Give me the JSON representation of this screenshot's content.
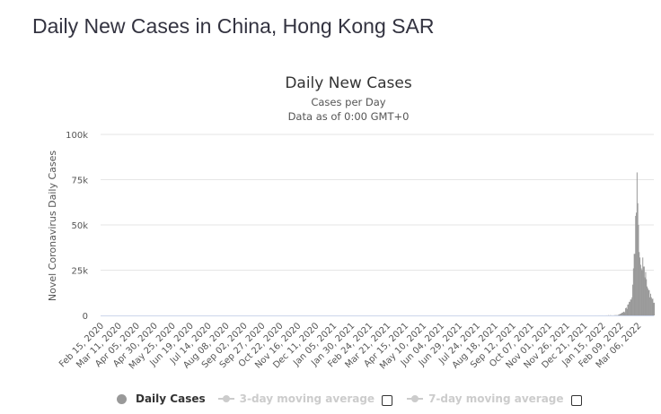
{
  "page_title": "Daily New Cases in China, Hong Kong SAR",
  "chart_data": {
    "type": "bar",
    "title": "Daily New Cases",
    "subtitle": [
      "Cases per Day",
      "Data as of 0:00 GMT+0"
    ],
    "ylabel": "Novel Coronavirus Daily Cases",
    "xlabel": "",
    "ylim": [
      0,
      100000
    ],
    "y_ticks": [
      "0",
      "25k",
      "50k",
      "75k",
      "100k"
    ],
    "y_tick_values": [
      0,
      25000,
      50000,
      75000,
      100000
    ],
    "x_start": "2020-02-15",
    "x_end": "2022-03-28",
    "x_tick_labels": [
      "Feb 15, 2020",
      "Mar 11, 2020",
      "Apr 05, 2020",
      "Apr 30, 2020",
      "May 25, 2020",
      "Jun 19, 2020",
      "Jul 14, 2020",
      "Aug 08, 2020",
      "Sep 02, 2020",
      "Sep 27, 2020",
      "Oct 22, 2020",
      "Nov 16, 2020",
      "Dec 11, 2020",
      "Jan 05, 2021",
      "Jan 30, 2021",
      "Feb 24, 2021",
      "Mar 21, 2021",
      "Apr 15, 2021",
      "May 10, 2021",
      "Jun 04, 2021",
      "Jun 29, 2021",
      "Jul 24, 2021",
      "Aug 18, 2021",
      "Sep 12, 2021",
      "Oct 07, 2021",
      "Nov 01, 2021",
      "Nov 26, 2021",
      "Dec 21, 2021",
      "Jan 15, 2022",
      "Feb 09, 2022",
      "Mar 06, 2022"
    ],
    "tick_interval_days": 25,
    "grid": true,
    "note": "values before 2022-01-01 are ~0",
    "series": [
      {
        "name": "Daily Cases",
        "start_date": "2022-01-01",
        "color": "#999999",
        "values": [
          0,
          0,
          5,
          10,
          0,
          14,
          0,
          0,
          12,
          20,
          9,
          14,
          0,
          20,
          15,
          0,
          12,
          0,
          20,
          25,
          30,
          10,
          140,
          0,
          60,
          140,
          0,
          60,
          0,
          0,
          100,
          100,
          130,
          130,
          130,
          130,
          350,
          600,
          600,
          1000,
          1100,
          1500,
          1500,
          2000,
          2100,
          1600,
          4000,
          4300,
          3600,
          6000,
          6100,
          7500,
          7500,
          8800,
          8800,
          10000,
          17000,
          26000,
          34000,
          34000,
          55000,
          56800,
          79000,
          62000,
          50000,
          35000,
          32000,
          28000,
          26000,
          25000,
          32000,
          27000,
          27000,
          21000,
          24000,
          20000,
          16000,
          15000,
          14000,
          14000,
          10000,
          12000,
          10000,
          9000,
          9300,
          7000,
          7000
        ]
      }
    ],
    "legend": {
      "placement": "bottom",
      "items": [
        {
          "label": "Daily Cases",
          "active": true
        },
        {
          "label": "3-day moving average",
          "active": false,
          "checked": false
        },
        {
          "label": "7-day moving average",
          "active": false,
          "checked": false
        }
      ]
    }
  }
}
